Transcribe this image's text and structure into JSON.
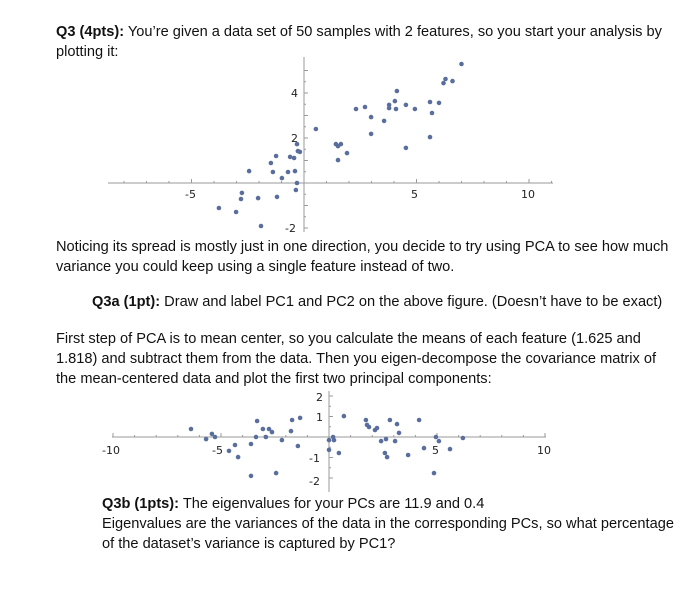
{
  "q3": {
    "heading": "Q3 (4pts):",
    "intro_line1": " You’re given a data set of 50 samples with 2 features, so you start your analysis by",
    "intro_line2": "plotting it:",
    "spread_line1": "Noticing its spread is mostly just in one direction, you decide to try using PCA to see how much",
    "spread_line2": "variance you could keep using a single feature instead of two."
  },
  "q3a": {
    "heading": "Q3a (1pt):",
    "text": " Draw and label PC1 and PC2 on the above figure. (Doesn’t have to be exact)"
  },
  "pca_step": {
    "line1": "First step of PCA is to mean center, so you calculate the means of each feature (1.625 and",
    "line2": "1.818) and subtract them from the data. Then you eigen-decompose the covariance matrix of",
    "line3": "the mean-centered data and plot the first two principal components:"
  },
  "q3b": {
    "heading": "Q3b (1pts):",
    "line1": " The eigenvalues for your PCs are 11.9 and 0.4",
    "line2": "Eigenvalues are the variances of the data in the corresponding PCs, so what percentage",
    "line3": "of the dataset’s variance is captured by PC1?"
  },
  "colors": {
    "point": "#5a6e9e",
    "axis": "#9a9a9a",
    "text": "#111111"
  },
  "chart_data": [
    {
      "type": "scatter",
      "title": "",
      "xlabel": "",
      "ylabel": "",
      "xlim": [
        -9,
        11
      ],
      "ylim": [
        -2.2,
        5.5
      ],
      "x_ticks": [
        "-5",
        "5",
        "10"
      ],
      "y_ticks": [
        "4",
        "2",
        "-2"
      ],
      "grid": false,
      "points": [
        [
          0.53,
          2.4
        ],
        [
          -0.31,
          1.73
        ],
        [
          -0.27,
          1.42
        ],
        [
          -0.18,
          1.38
        ],
        [
          -1.24,
          1.2
        ],
        [
          -0.62,
          1.16
        ],
        [
          -0.44,
          1.11
        ],
        [
          -1.47,
          0.89
        ],
        [
          -2.44,
          0.53
        ],
        [
          -1.38,
          0.49
        ],
        [
          -0.71,
          0.49
        ],
        [
          -0.4,
          0.53
        ],
        [
          -0.98,
          0.22
        ],
        [
          -0.31,
          0.0
        ],
        [
          -0.36,
          -0.31
        ],
        [
          -2.76,
          -0.44
        ],
        [
          -2.8,
          -0.71
        ],
        [
          -2.04,
          -0.67
        ],
        [
          -1.2,
          -0.62
        ],
        [
          -3.78,
          -1.11
        ],
        [
          -3.02,
          -1.29
        ],
        [
          -1.91,
          -1.91
        ],
        [
          7.0,
          5.29
        ],
        [
          6.29,
          4.62
        ],
        [
          6.2,
          4.44
        ],
        [
          6.6,
          4.53
        ],
        [
          4.13,
          4.09
        ],
        [
          4.04,
          3.64
        ],
        [
          3.78,
          3.47
        ],
        [
          3.78,
          3.33
        ],
        [
          4.09,
          3.29
        ],
        [
          4.53,
          3.47
        ],
        [
          4.93,
          3.29
        ],
        [
          5.6,
          3.6
        ],
        [
          6.0,
          3.56
        ],
        [
          5.69,
          3.11
        ],
        [
          2.31,
          3.29
        ],
        [
          2.71,
          3.38
        ],
        [
          2.98,
          2.93
        ],
        [
          3.56,
          2.76
        ],
        [
          2.98,
          2.18
        ],
        [
          5.6,
          2.04
        ],
        [
          4.53,
          1.56
        ],
        [
          1.42,
          1.73
        ],
        [
          1.51,
          1.64
        ],
        [
          1.64,
          1.73
        ],
        [
          1.91,
          1.33
        ],
        [
          1.51,
          1.02
        ]
      ]
    },
    {
      "type": "scatter",
      "title": "",
      "xlabel": "",
      "ylabel": "",
      "xlim": [
        -10,
        10
      ],
      "ylim": [
        -2.3,
        2.4
      ],
      "x_ticks": [
        "-10",
        "-5",
        "5",
        "10"
      ],
      "y_ticks": [
        "2",
        "1",
        "-1",
        "-2"
      ],
      "grid": false,
      "points": [
        [
          -6.39,
          0.39
        ],
        [
          -5.69,
          -0.1
        ],
        [
          -5.42,
          0.15
        ],
        [
          -5.28,
          0.0
        ],
        [
          -4.63,
          -0.68
        ],
        [
          -4.35,
          -0.39
        ],
        [
          -4.21,
          -0.98
        ],
        [
          -3.61,
          -0.34
        ],
        [
          -3.61,
          -1.9
        ],
        [
          -3.33,
          0.78
        ],
        [
          -3.38,
          0.0
        ],
        [
          -3.06,
          0.39
        ],
        [
          -2.78,
          0.39
        ],
        [
          -2.64,
          0.24
        ],
        [
          -2.92,
          0.0
        ],
        [
          -2.45,
          -1.76
        ],
        [
          -2.18,
          -0.15
        ],
        [
          -1.76,
          0.29
        ],
        [
          -1.71,
          0.83
        ],
        [
          -1.34,
          0.93
        ],
        [
          -1.44,
          -0.44
        ],
        [
          0.0,
          -0.15
        ],
        [
          0.0,
          -0.63
        ],
        [
          0.19,
          0.0
        ],
        [
          0.23,
          -0.15
        ],
        [
          0.46,
          -0.78
        ],
        [
          0.69,
          1.02
        ],
        [
          1.71,
          0.83
        ],
        [
          1.76,
          0.59
        ],
        [
          1.85,
          0.49
        ],
        [
          2.13,
          0.34
        ],
        [
          2.22,
          0.44
        ],
        [
          2.41,
          -0.2
        ],
        [
          2.64,
          -0.1
        ],
        [
          2.59,
          -0.78
        ],
        [
          2.69,
          -0.98
        ],
        [
          2.82,
          0.83
        ],
        [
          3.06,
          -0.2
        ],
        [
          3.15,
          0.63
        ],
        [
          3.24,
          0.2
        ],
        [
          3.66,
          -0.88
        ],
        [
          4.17,
          0.83
        ],
        [
          4.4,
          -0.54
        ],
        [
          4.95,
          0.0
        ],
        [
          5.09,
          -0.2
        ],
        [
          4.86,
          -1.76
        ],
        [
          5.6,
          -0.59
        ],
        [
          6.2,
          -0.05
        ]
      ]
    }
  ]
}
